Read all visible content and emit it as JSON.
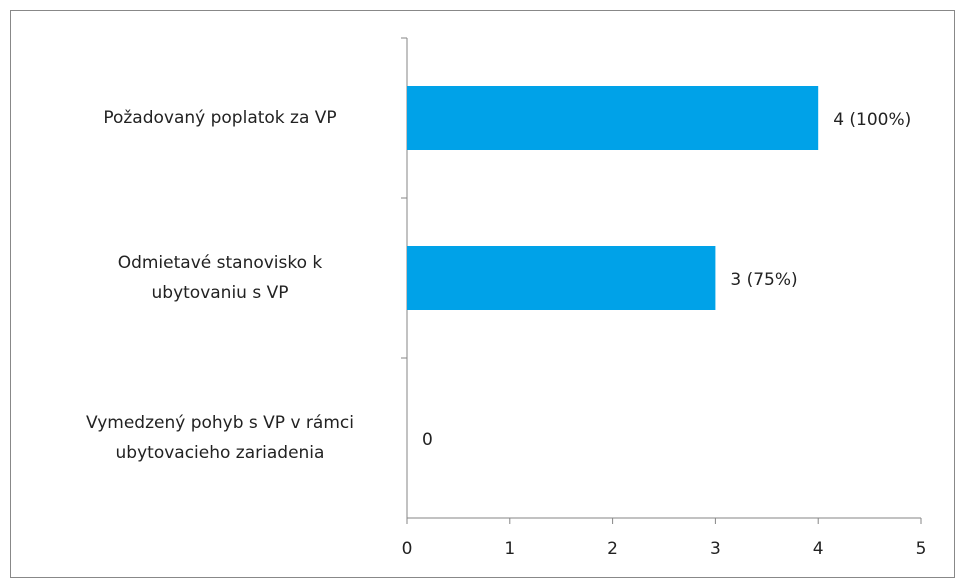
{
  "chart_data": {
    "type": "bar",
    "orientation": "horizontal",
    "categories": [
      "Požadovaný poplatok za VP",
      "Odmietavé stanovisko k\nubytovaniu s VP",
      "Vymedzený pohyb s VP v rámci\nubytovacieho zariadenia"
    ],
    "values": [
      4,
      3,
      0
    ],
    "value_labels": [
      "4 (100%)",
      "3 (75%)",
      "0"
    ],
    "color": "#00a2e8",
    "xlim": [
      0,
      5
    ],
    "xticks": [
      0,
      1,
      2,
      3,
      4,
      5
    ],
    "grid": false
  }
}
